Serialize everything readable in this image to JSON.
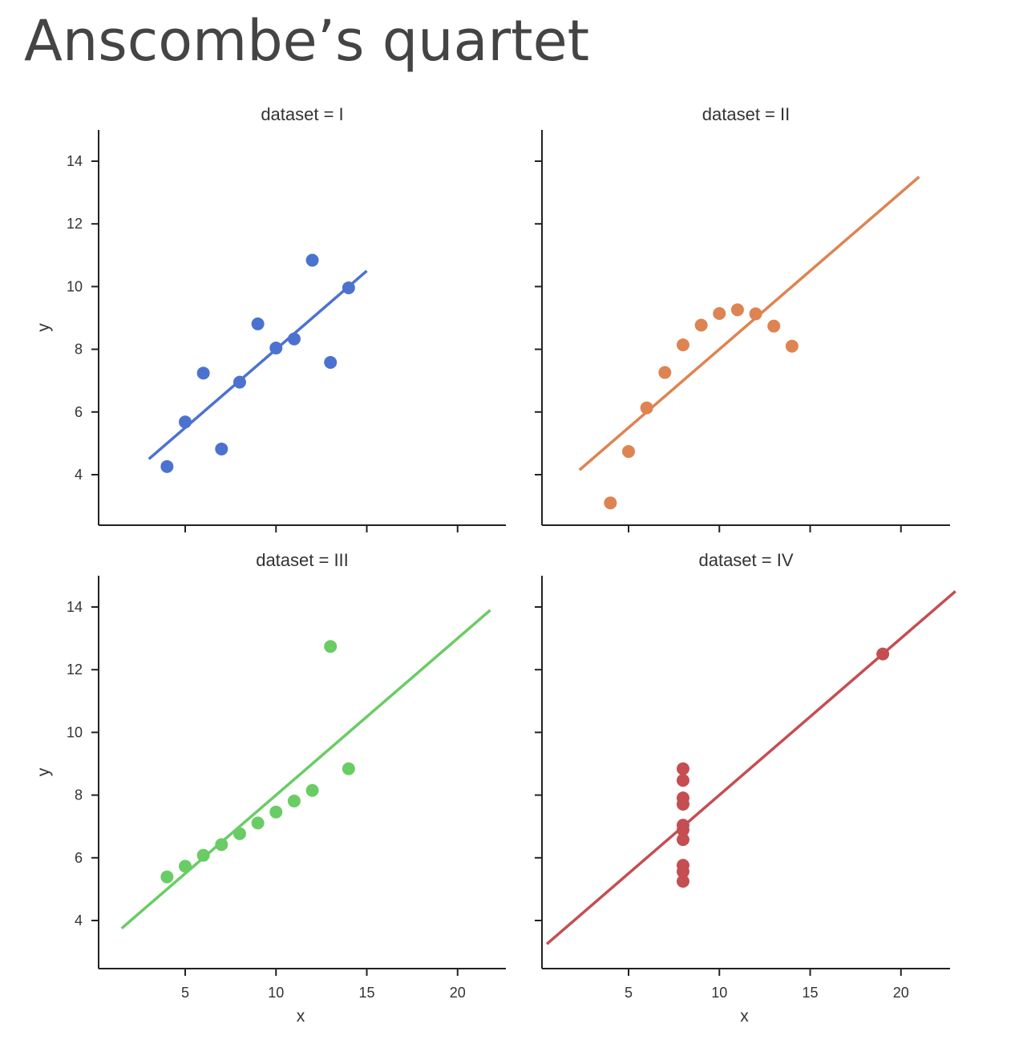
{
  "page": {
    "title": "Anscombe’s quartet"
  },
  "chart_data": [
    {
      "type": "scatter",
      "title": "dataset = I",
      "xlabel": "",
      "ylabel": "y",
      "color": "#4c72d0",
      "xlim": [
        0.5,
        23
      ],
      "ylim": [
        2.5,
        15
      ],
      "xticks": [
        5,
        10,
        15,
        20
      ],
      "yticks": [
        4,
        6,
        8,
        10,
        12,
        14
      ],
      "x": [
        10,
        8,
        13,
        9,
        11,
        14,
        6,
        4,
        12,
        7,
        5
      ],
      "y": [
        8.04,
        6.95,
        7.58,
        8.81,
        8.33,
        9.96,
        7.24,
        4.26,
        10.84,
        4.82,
        5.68
      ],
      "fit": {
        "slope": 0.5,
        "intercept": 3.0,
        "x_range": [
          3.0,
          15.0
        ]
      }
    },
    {
      "type": "scatter",
      "title": "dataset = II",
      "xlabel": "",
      "ylabel": "",
      "color": "#dd8452",
      "xlim": [
        0.5,
        23
      ],
      "ylim": [
        2.5,
        15
      ],
      "xticks": [
        5,
        10,
        15,
        20
      ],
      "yticks": [
        4,
        6,
        8,
        10,
        12,
        14
      ],
      "x": [
        10,
        8,
        13,
        9,
        11,
        14,
        6,
        4,
        12,
        7,
        5
      ],
      "y": [
        9.14,
        8.14,
        8.74,
        8.77,
        9.26,
        8.1,
        6.13,
        3.1,
        9.13,
        7.26,
        4.74
      ],
      "fit": {
        "slope": 0.5,
        "intercept": 3.0,
        "x_range": [
          2.3,
          21.0
        ]
      }
    },
    {
      "type": "scatter",
      "title": "dataset = III",
      "xlabel": "x",
      "ylabel": "y",
      "color": "#6acc64",
      "xlim": [
        0.5,
        23
      ],
      "ylim": [
        2.5,
        15
      ],
      "xticks": [
        5,
        10,
        15,
        20
      ],
      "yticks": [
        4,
        6,
        8,
        10,
        12,
        14
      ],
      "x": [
        10,
        8,
        13,
        9,
        11,
        14,
        6,
        4,
        12,
        7,
        5
      ],
      "y": [
        7.46,
        6.77,
        12.74,
        7.11,
        7.81,
        8.84,
        6.08,
        5.39,
        8.15,
        6.42,
        5.73
      ],
      "fit": {
        "slope": 0.5,
        "intercept": 3.0,
        "x_range": [
          1.5,
          21.8
        ]
      }
    },
    {
      "type": "scatter",
      "title": "dataset = IV",
      "xlabel": "x",
      "ylabel": "",
      "color": "#c44e52",
      "xlim": [
        0.5,
        23
      ],
      "ylim": [
        2.5,
        15
      ],
      "xticks": [
        5,
        10,
        15,
        20
      ],
      "yticks": [
        4,
        6,
        8,
        10,
        12,
        14
      ],
      "x": [
        8,
        8,
        8,
        8,
        8,
        8,
        8,
        19,
        8,
        8,
        8
      ],
      "y": [
        6.58,
        5.76,
        7.71,
        8.84,
        8.47,
        7.04,
        5.25,
        12.5,
        5.56,
        7.91,
        6.89
      ],
      "fit": {
        "slope": 0.5,
        "intercept": 3.0,
        "x_range": [
          0.5,
          23.0
        ]
      }
    }
  ]
}
